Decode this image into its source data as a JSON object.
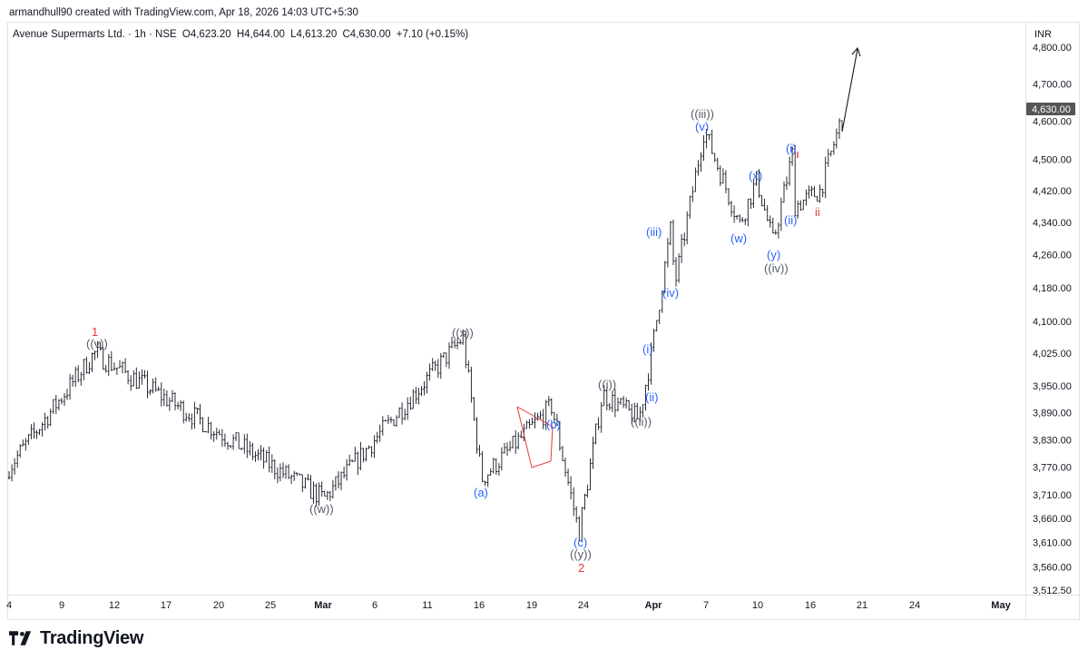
{
  "header": {
    "attribution": "armandhull90 created with TradingView.com, Apr 18, 2026 14:03 UTC+5:30"
  },
  "symbol": {
    "name": "Avenue Supermarts Ltd. · 1h · NSE",
    "open_label": "O",
    "open": "4,623.20",
    "high_label": "H",
    "high": "4,644.00",
    "low_label": "L",
    "low": "4,613.20",
    "close_label": "C",
    "close": "4,630.00",
    "change": "+7.10 (+0.15%)"
  },
  "colors": {
    "line": "#131722",
    "blue_label": "#2962ff",
    "red_label": "#e53935",
    "grey_label": "#555b66",
    "price_tag_bg": "#555555",
    "border": "#e0e3eb"
  },
  "price_axis": {
    "currency": "INR",
    "ticks": [
      "4,800.00",
      "4,700.00",
      "4,600.00",
      "4,500.00",
      "4,420.00",
      "4,340.00",
      "4,260.00",
      "4,180.00",
      "4,100.00",
      "4,025.00",
      "3,950.00",
      "3,890.00",
      "3,830.00",
      "3,770.00",
      "3,710.00",
      "3,660.00",
      "3,610.00",
      "3,560.00",
      "3,512.50"
    ],
    "current_price_tag": "4,630.00"
  },
  "time_axis": {
    "ticks": [
      "4",
      "9",
      "12",
      "17",
      "20",
      "25",
      "Mar",
      "6",
      "11",
      "16",
      "19",
      "24",
      "Apr",
      "7",
      "10",
      "16",
      "21",
      "24",
      "May"
    ]
  },
  "chart_data": {
    "type": "ohlc",
    "symbol": "Avenue Supermarts Ltd.",
    "interval": "1h",
    "exchange": "NSE",
    "y_scale": "log",
    "ylim": [
      3512.5,
      4840
    ],
    "swing_points": [
      {
        "label": "start",
        "price": 3770
      },
      {
        "label": "((v)) / 1",
        "price": 4025
      },
      {
        "label": "((w))",
        "price": 3702
      },
      {
        "label": "((x))",
        "price": 4062
      },
      {
        "label": "(a)",
        "price": 3745
      },
      {
        "label": "(b)",
        "price": 3905
      },
      {
        "label": "(c) / ((y)) / 2",
        "price": 3630
      },
      {
        "label": "((i))",
        "price": 3932
      },
      {
        "label": "((ii))",
        "price": 3874
      },
      {
        "label": "(i)",
        "price": 4025
      },
      {
        "label": "(iii)",
        "price": 4322
      },
      {
        "label": "(iv)",
        "price": 4190
      },
      {
        "label": "(v) / ((iii))",
        "price": 4578
      },
      {
        "label": "(w)",
        "price": 4335
      },
      {
        "label": "(x)",
        "price": 4448
      },
      {
        "label": "(y) / ((iv))",
        "price": 4290
      },
      {
        "label": "(i)",
        "price": 4522
      },
      {
        "label": "(ii)",
        "price": 4380
      },
      {
        "label": "ii",
        "price": 4420
      },
      {
        "label": "last",
        "price": 4630
      }
    ],
    "wave_labels": [
      {
        "text": "1",
        "color": "red"
      },
      {
        "text": "((v))",
        "color": "grey"
      },
      {
        "text": "((w))",
        "color": "grey"
      },
      {
        "text": "((x))",
        "color": "grey"
      },
      {
        "text": "(a)",
        "color": "blue"
      },
      {
        "text": "(b)",
        "color": "blue"
      },
      {
        "text": "(c)",
        "color": "blue"
      },
      {
        "text": "((y))",
        "color": "grey"
      },
      {
        "text": "2",
        "color": "red"
      },
      {
        "text": "((i))",
        "color": "grey"
      },
      {
        "text": "((ii))",
        "color": "grey"
      },
      {
        "text": "(i)",
        "color": "blue"
      },
      {
        "text": "(ii)",
        "color": "blue"
      },
      {
        "text": "(iii)",
        "color": "blue"
      },
      {
        "text": "(iv)",
        "color": "blue"
      },
      {
        "text": "(v)",
        "color": "blue"
      },
      {
        "text": "((iii))",
        "color": "grey"
      },
      {
        "text": "(w)",
        "color": "blue"
      },
      {
        "text": "(x)",
        "color": "blue"
      },
      {
        "text": "(y)",
        "color": "blue"
      },
      {
        "text": "((iv))",
        "color": "grey"
      },
      {
        "text": "(i)",
        "color": "blue"
      },
      {
        "text": "(ii)",
        "color": "blue"
      },
      {
        "text": "ii",
        "color": "red"
      }
    ]
  },
  "footer": {
    "brand": "TradingView"
  }
}
